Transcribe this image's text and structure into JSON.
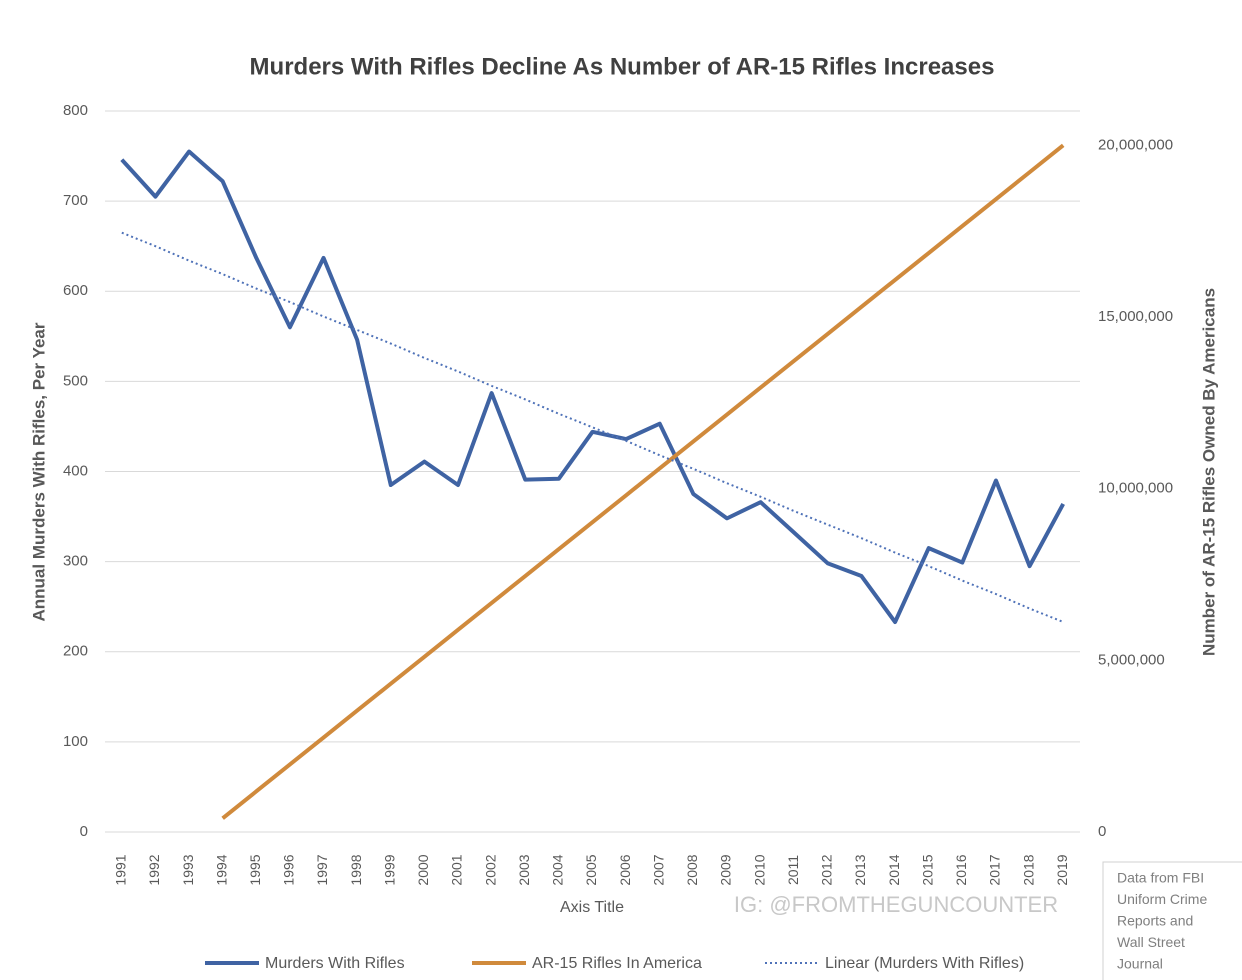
{
  "chart_data": {
    "type": "line",
    "title": "Murders With Rifles Decline As Number of AR-15 Rifles Increases",
    "x_label": "Axis Title",
    "y_label": "Annual Murders With Rifles, Per Year",
    "y2_label": "Number of AR-15 Rifles Owned By Americans",
    "watermark": "IG: @FROMTHEGUNCOUNTER",
    "source": [
      "Data from FBI",
      "Uniform Crime",
      "Reports and",
      "Wall Street",
      "Journal"
    ],
    "categories": [
      "1991",
      "1992",
      "1993",
      "1994",
      "1995",
      "1996",
      "1997",
      "1998",
      "1999",
      "2000",
      "2001",
      "2002",
      "2003",
      "2004",
      "2005",
      "2006",
      "2007",
      "2008",
      "2009",
      "2010",
      "2011",
      "2012",
      "2013",
      "2014",
      "2015",
      "2016",
      "2017",
      "2018",
      "2019"
    ],
    "ylim": [
      0,
      800
    ],
    "yticks": [
      0,
      100,
      200,
      300,
      400,
      500,
      600,
      700,
      800
    ],
    "y2lim": [
      0,
      21000000
    ],
    "y2ticks": [
      0,
      {
        "value": 5000000,
        "label": "5,000,000"
      },
      {
        "value": 10000000,
        "label": "10,000,000"
      },
      {
        "value": 15000000,
        "label": "15,000,000"
      },
      {
        "value": 20000000,
        "label": "20,000,000"
      }
    ],
    "grid": true,
    "legend": "bottom",
    "series": [
      {
        "name": "Murders With Rifles",
        "color": "#3f63a3",
        "style": "solid",
        "values": [
          746,
          705,
          755,
          722,
          637,
          560,
          637,
          546,
          385,
          411,
          385,
          487,
          391,
          392,
          444,
          436,
          453,
          375,
          348,
          366,
          332,
          298,
          284,
          233,
          315,
          299,
          390,
          295,
          364
        ]
      },
      {
        "name": "AR-15 Rifles In America",
        "color": "#d08a3c",
        "style": "solid",
        "axis": "y2",
        "values": [
          null,
          null,
          null,
          400000,
          1184000,
          1968000,
          2752000,
          3536000,
          4320000,
          5104000,
          5888000,
          6672000,
          7456000,
          8240000,
          9024000,
          9808000,
          10592000,
          11376000,
          12160000,
          12944000,
          13728000,
          14512000,
          15296000,
          16080000,
          16864000,
          17648000,
          18432000,
          19216000,
          20000000
        ]
      },
      {
        "name": "Linear (Murders With Rifles)",
        "color": "#4f72b8",
        "style": "dotted",
        "values": [
          665,
          650,
          634,
          619,
          603,
          588,
          572,
          557,
          542,
          526,
          511,
          495,
          480,
          464,
          449,
          434,
          418,
          403,
          387,
          372,
          356,
          341,
          326,
          310,
          295,
          279,
          264,
          248,
          233
        ]
      }
    ]
  }
}
